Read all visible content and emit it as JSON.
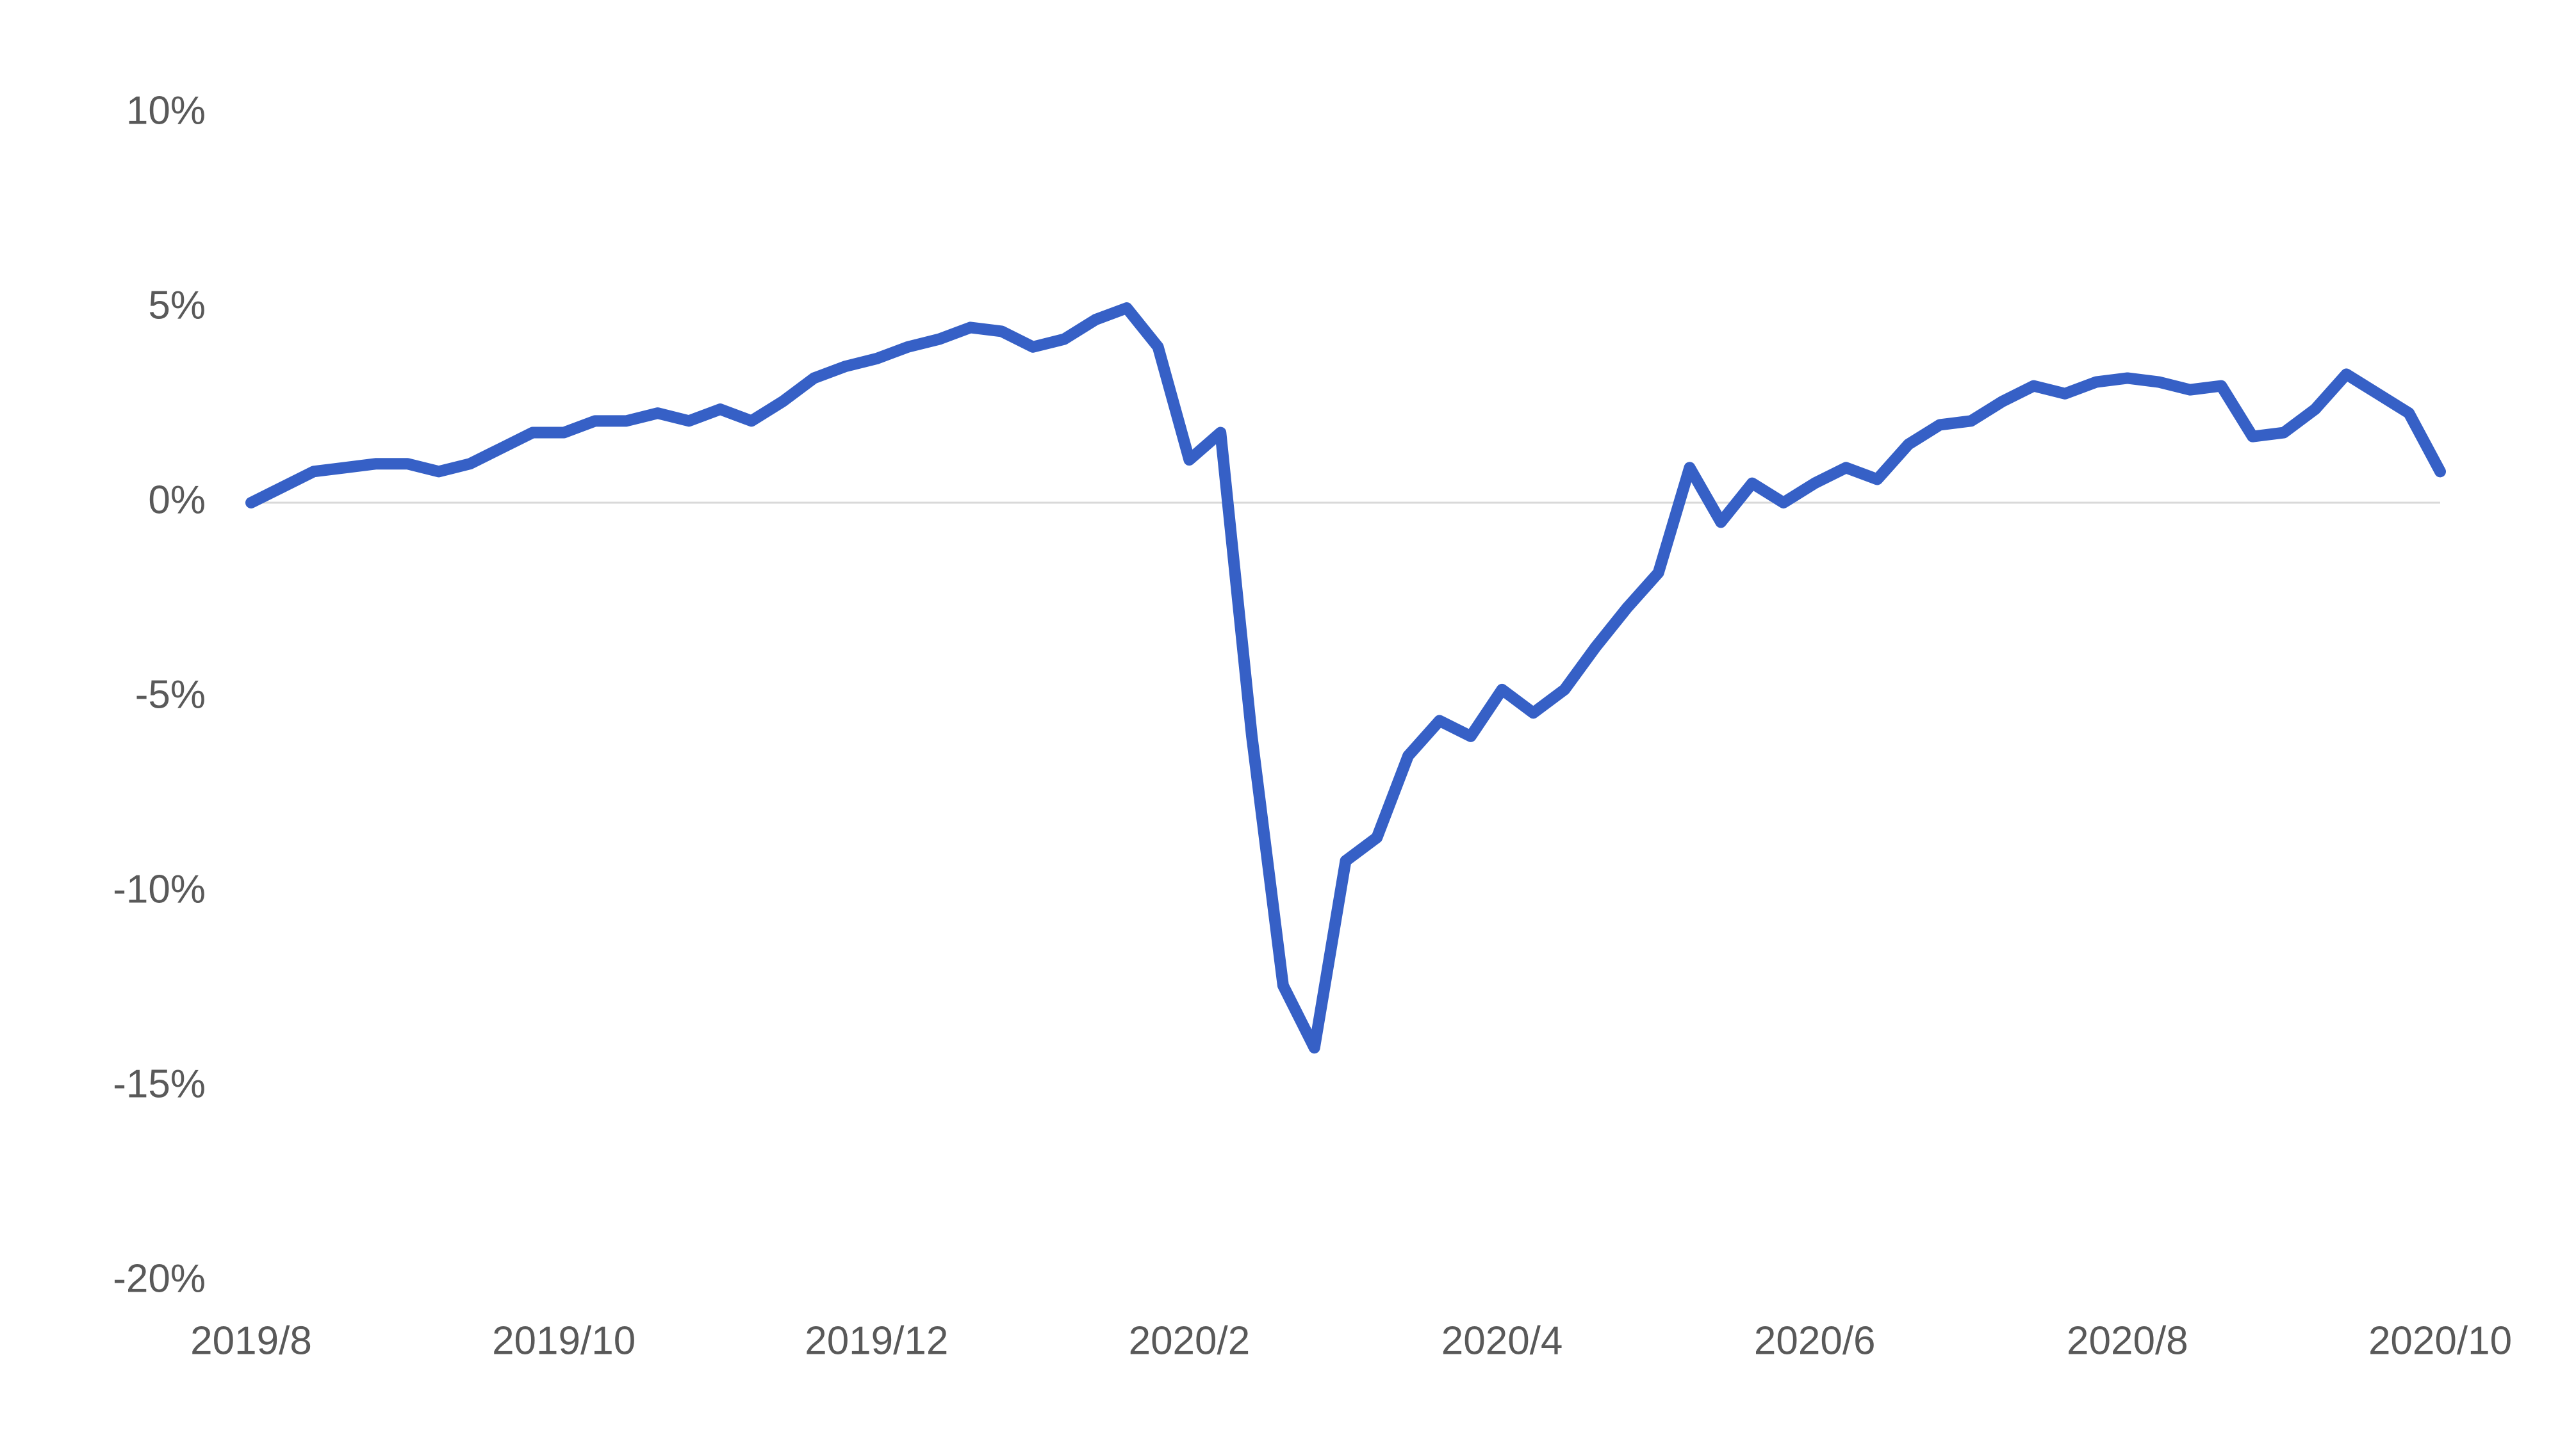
{
  "chart_data": {
    "type": "line",
    "categories": [
      "2019/8",
      null,
      null,
      null,
      null,
      null,
      null,
      null,
      null,
      null,
      "2019/10",
      null,
      null,
      null,
      null,
      null,
      null,
      null,
      null,
      null,
      "2019/12",
      null,
      null,
      null,
      null,
      null,
      null,
      null,
      null,
      null,
      "2020/2",
      null,
      null,
      null,
      null,
      null,
      null,
      null,
      null,
      null,
      "2020/4",
      null,
      null,
      null,
      null,
      null,
      null,
      null,
      null,
      null,
      "2020/6",
      null,
      null,
      null,
      null,
      null,
      null,
      null,
      null,
      null,
      "2020/8",
      null,
      null,
      null,
      null,
      null,
      null,
      null,
      null,
      null,
      "2020/10"
    ],
    "series": [
      {
        "color": "#3660c6",
        "values": [
          0,
          0.4,
          0.8,
          0.9,
          1.0,
          1.0,
          0.8,
          1.0,
          1.4,
          1.8,
          1.8,
          2.1,
          2.1,
          2.3,
          2.1,
          2.4,
          2.1,
          2.6,
          3.2,
          3.5,
          3.7,
          4.0,
          4.2,
          4.5,
          4.4,
          4.0,
          4.2,
          4.7,
          5.0,
          4.0,
          1.1,
          1.8,
          -6.0,
          -12.4,
          -14.0,
          -9.2,
          -8.6,
          -6.5,
          -5.6,
          -6.0,
          -4.8,
          -5.4,
          -4.8,
          -3.7,
          -2.7,
          -1.8,
          0.9,
          -0.5,
          0.5,
          0.0,
          0.5,
          0.9,
          0.6,
          1.5,
          2.0,
          2.1,
          2.6,
          3.0,
          2.8,
          3.1,
          3.2,
          3.1,
          2.9,
          3.0,
          1.7,
          1.8,
          2.4,
          3.3,
          2.8,
          2.3,
          0.8
        ]
      }
    ],
    "ylim": [
      -20,
      10
    ],
    "yticks": [
      {
        "value": -20,
        "label": "-20%"
      },
      {
        "value": -15,
        "label": "-15%"
      },
      {
        "value": -10,
        "label": "-10%"
      },
      {
        "value": -5,
        "label": "-5%"
      },
      {
        "value": 0,
        "label": "0%"
      },
      {
        "value": 5,
        "label": "5%"
      },
      {
        "value": 10,
        "label": "10%"
      }
    ],
    "grid": false
  }
}
